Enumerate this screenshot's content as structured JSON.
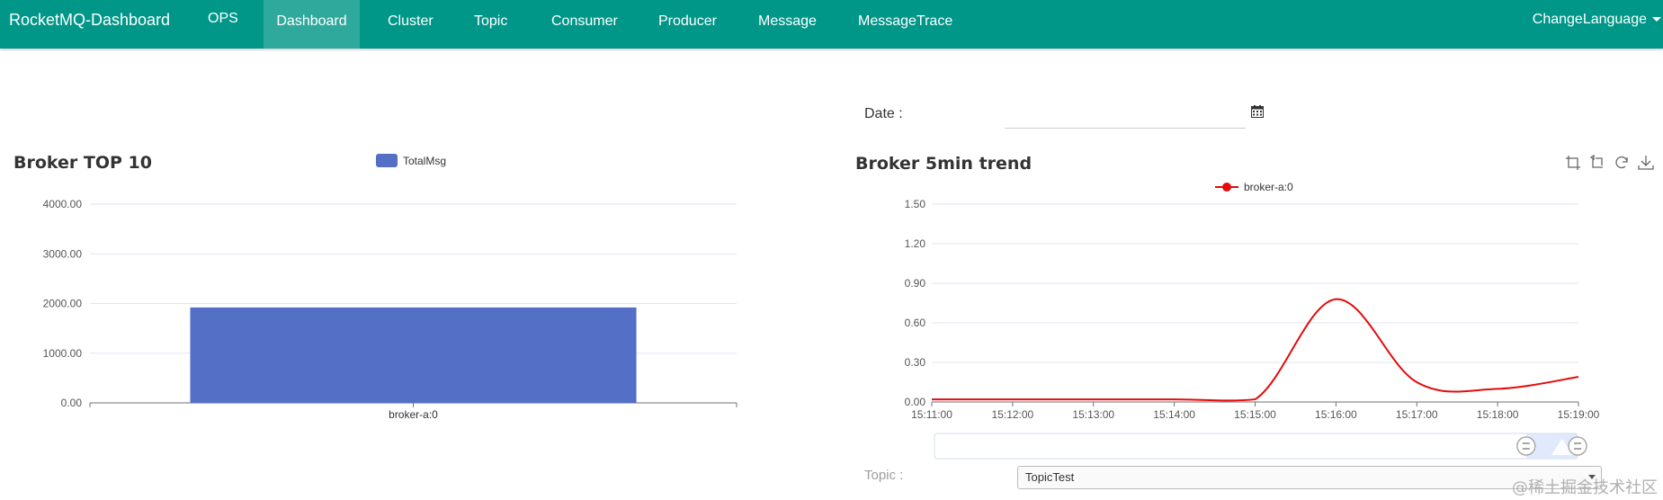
{
  "navbar": {
    "brand": "RocketMQ-Dashboard",
    "items": [
      {
        "label": "OPS",
        "active": false
      },
      {
        "label": "Dashboard",
        "active": true
      },
      {
        "label": "Cluster",
        "active": false
      },
      {
        "label": "Topic",
        "active": false
      },
      {
        "label": "Consumer",
        "active": false
      },
      {
        "label": "Producer",
        "active": false
      },
      {
        "label": "Message",
        "active": false
      },
      {
        "label": "MessageTrace",
        "active": false
      }
    ],
    "change_language": "ChangeLanguage"
  },
  "date": {
    "label": "Date :",
    "value": ""
  },
  "topic": {
    "label": "Topic :",
    "selected": "TopicTest"
  },
  "watermark": "@稀土掘金技术社区",
  "colors": {
    "nav": "#009688",
    "nav_active": "#2fa99c",
    "bar": "#5470c6",
    "line": "#e30b0b"
  },
  "toolbox_icons": [
    "zoom-icon",
    "zoom-reset-icon",
    "restore-icon",
    "download-icon"
  ],
  "chart_data": [
    {
      "type": "bar",
      "title": "Broker TOP 10",
      "categories": [
        "broker-a:0"
      ],
      "series": [
        {
          "name": "TotalMsg",
          "values": [
            1920
          ]
        }
      ],
      "yticks": [
        "0.00",
        "1000.00",
        "2000.00",
        "3000.00",
        "4000.00"
      ],
      "ylim": [
        0,
        4000
      ],
      "grid": true,
      "legend": "top-center"
    },
    {
      "type": "line",
      "title": "Broker 5min trend",
      "x": [
        "15:11:00",
        "15:12:00",
        "15:13:00",
        "15:14:00",
        "15:15:00",
        "15:16:00",
        "15:17:00",
        "15:18:00",
        "15:19:00"
      ],
      "series": [
        {
          "name": "broker-a:0",
          "values": [
            0.02,
            0.02,
            0.02,
            0.02,
            0.02,
            0.78,
            0.15,
            0.1,
            0.19
          ]
        }
      ],
      "yticks": [
        "0.00",
        "0.30",
        "0.60",
        "0.90",
        "1.20",
        "1.50"
      ],
      "ylim": [
        0,
        1.5
      ],
      "smooth": true,
      "grid": true,
      "legend": "top-center",
      "datazoom_range_percent": [
        92,
        100
      ]
    }
  ]
}
